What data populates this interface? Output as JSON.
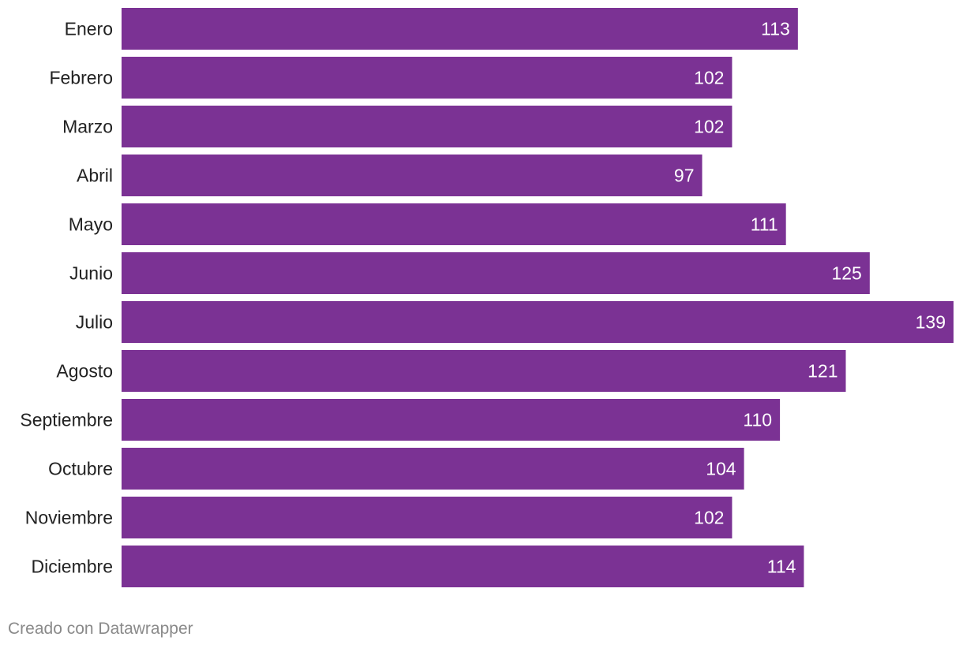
{
  "chart_data": {
    "type": "bar",
    "orientation": "horizontal",
    "categories": [
      "Enero",
      "Febrero",
      "Marzo",
      "Abril",
      "Mayo",
      "Junio",
      "Julio",
      "Agosto",
      "Septiembre",
      "Octubre",
      "Noviembre",
      "Diciembre"
    ],
    "values": [
      113,
      102,
      102,
      97,
      111,
      125,
      139,
      121,
      110,
      104,
      102,
      114
    ],
    "xlim": [
      0,
      139
    ],
    "bar_color": "#7b3294",
    "value_label_color": "#ffffff",
    "category_label_color": "#222222",
    "title": "",
    "xlabel": "",
    "ylabel": ""
  },
  "footer": {
    "credit": "Creado con Datawrapper"
  }
}
